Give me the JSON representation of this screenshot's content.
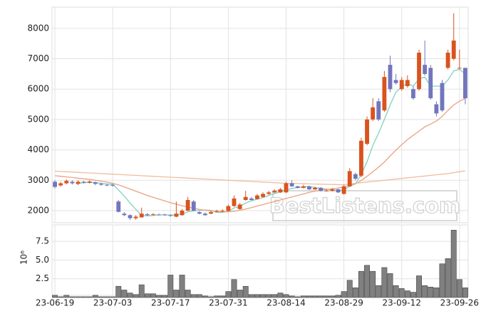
{
  "chart_data": [
    {
      "type": "candlestick",
      "watermark": "BestListens.com",
      "categories": [
        "23-06-19",
        null,
        null,
        null,
        null,
        null,
        null,
        null,
        null,
        null,
        "23-07-03",
        null,
        null,
        null,
        null,
        null,
        null,
        null,
        null,
        null,
        "23-07-17",
        null,
        null,
        null,
        null,
        null,
        null,
        null,
        null,
        null,
        "23-07-31",
        null,
        null,
        null,
        null,
        null,
        null,
        null,
        null,
        null,
        "23-08-14",
        null,
        null,
        null,
        null,
        null,
        null,
        null,
        null,
        null,
        "23-08-29",
        null,
        null,
        null,
        null,
        null,
        null,
        null,
        null,
        null,
        "23-09-12",
        null,
        null,
        null,
        null,
        null,
        null,
        null,
        null,
        null,
        "23-09-26",
        null
      ],
      "open": [
        2950,
        2830,
        2900,
        2950,
        2880,
        2950,
        2920,
        2930,
        2880,
        2850,
        2850,
        2300,
        1900,
        1850,
        1750,
        1780,
        1880,
        1860,
        1870,
        1870,
        1850,
        1800,
        1850,
        2000,
        2300,
        1950,
        1900,
        1900,
        1980,
        1980,
        1990,
        2150,
        2050,
        2350,
        2400,
        2380,
        2450,
        2550,
        2600,
        2600,
        2600,
        2900,
        2800,
        2750,
        2800,
        2700,
        2750,
        2650,
        2650,
        2700,
        2550,
        2800,
        3200,
        3150,
        4200,
        5000,
        5600,
        5300,
        6800,
        6300,
        6000,
        6100,
        6000,
        6000,
        6800,
        6700,
        5500,
        6200,
        6700,
        7000,
        6700,
        6700
      ],
      "high": [
        3000,
        2950,
        3030,
        3000,
        3000,
        2980,
        3000,
        2960,
        2920,
        2880,
        2870,
        2350,
        1950,
        1880,
        1850,
        2100,
        1920,
        1920,
        1900,
        1900,
        1880,
        2300,
        2050,
        2450,
        2350,
        1980,
        1940,
        2000,
        2030,
        2040,
        2200,
        2500,
        2250,
        2650,
        2450,
        2550,
        2600,
        2650,
        2700,
        2750,
        2950,
        3000,
        2820,
        2850,
        2820,
        2790,
        2780,
        2700,
        2740,
        2720,
        2850,
        3400,
        3250,
        4400,
        5100,
        5700,
        5700,
        6600,
        7100,
        6500,
        6400,
        6450,
        6100,
        7300,
        7600,
        6800,
        5600,
        6300,
        7300,
        8500,
        7300,
        6700
      ],
      "low": [
        2730,
        2790,
        2860,
        2860,
        2840,
        2890,
        2890,
        2840,
        2820,
        2800,
        2790,
        1940,
        1820,
        1700,
        1700,
        1760,
        1820,
        1840,
        1840,
        1830,
        1800,
        1780,
        1830,
        1980,
        1980,
        1880,
        1830,
        1880,
        1950,
        1960,
        1970,
        2130,
        2030,
        2330,
        2330,
        2360,
        2430,
        2520,
        2580,
        2580,
        2580,
        2780,
        2730,
        2730,
        2680,
        2680,
        2630,
        2630,
        2630,
        2580,
        2530,
        2780,
        3000,
        3100,
        4150,
        4950,
        4950,
        5250,
        5900,
        6150,
        5950,
        6050,
        5650,
        5950,
        6450,
        5650,
        5100,
        5250,
        6650,
        6950,
        6650,
        5500
      ],
      "close": [
        2780,
        2900,
        2980,
        2900,
        2950,
        2920,
        2960,
        2880,
        2850,
        2830,
        2820,
        1960,
        1850,
        1750,
        1800,
        1900,
        1850,
        1880,
        1860,
        1850,
        1830,
        1900,
        2000,
        2350,
        2000,
        1900,
        1850,
        1950,
        1990,
        2000,
        2150,
        2400,
        2200,
        2450,
        2350,
        2500,
        2550,
        2600,
        2650,
        2700,
        2900,
        2800,
        2750,
        2800,
        2700,
        2750,
        2650,
        2660,
        2700,
        2600,
        2800,
        3300,
        3050,
        4300,
        5000,
        5400,
        5000,
        6400,
        6000,
        6200,
        6300,
        6300,
        5700,
        7200,
        6500,
        5700,
        5200,
        5300,
        7200,
        7600,
        6700,
        5700
      ],
      "up_color": "#d9531e",
      "down_color": "#7176bd",
      "lines": [
        {
          "color": "#7fd1c0",
          "values": [
            null,
            null,
            null,
            null,
            2900,
            2920,
            2930,
            2920,
            2900,
            2880,
            2870,
            2680,
            2480,
            2250,
            2040,
            1840,
            1830,
            1840,
            1860,
            1860,
            1850,
            1860,
            1880,
            1960,
            1990,
            2010,
            2020,
            2010,
            1940,
            1940,
            1980,
            2090,
            2140,
            2250,
            2320,
            2380,
            2430,
            2500,
            2560,
            2620,
            2680,
            2730,
            2760,
            2780,
            2790,
            2760,
            2730,
            2710,
            2690,
            2660,
            2680,
            2800,
            2880,
            3190,
            3610,
            4150,
            4550,
            5000,
            5480,
            5900,
            6070,
            6200,
            6100,
            6340,
            6400,
            6100,
            6100,
            6100,
            6300,
            6600,
            6650,
            6500
          ]
        },
        {
          "color": "#e9a283",
          "values": [
            3150,
            3130,
            3110,
            3090,
            3070,
            3050,
            3030,
            3000,
            2970,
            2940,
            2900,
            2850,
            2780,
            2710,
            2640,
            2570,
            2500,
            2440,
            2380,
            2320,
            2260,
            2210,
            2160,
            2120,
            2080,
            2040,
            2010,
            1990,
            1970,
            1960,
            1960,
            1980,
            2010,
            2050,
            2100,
            2150,
            2200,
            2250,
            2300,
            2350,
            2400,
            2450,
            2500,
            2550,
            2600,
            2640,
            2680,
            2700,
            2720,
            2740,
            2780,
            2830,
            2880,
            2990,
            3130,
            3280,
            3430,
            3600,
            3800,
            3990,
            4170,
            4340,
            4480,
            4620,
            4760,
            4850,
            4950,
            5100,
            5300,
            5480,
            5600,
            5700
          ]
        },
        {
          "color": "#f0bc9e",
          "values": [
            3300,
            3290,
            3280,
            3270,
            3260,
            3250,
            3240,
            3230,
            3220,
            3210,
            3200,
            3190,
            3180,
            3170,
            3160,
            3150,
            3140,
            3130,
            3120,
            3110,
            3100,
            3090,
            3080,
            3070,
            3060,
            3050,
            3040,
            3030,
            3020,
            3010,
            3000,
            2990,
            2980,
            2970,
            2960,
            2950,
            2940,
            2930,
            2920,
            2910,
            2900,
            2895,
            2890,
            2885,
            2880,
            2875,
            2870,
            2865,
            2860,
            2855,
            2850,
            2880,
            2900,
            2920,
            2940,
            2960,
            2980,
            3000,
            3020,
            3040,
            3060,
            3080,
            3100,
            3120,
            3140,
            3160,
            3180,
            3200,
            3220,
            3250,
            3280,
            3310
          ]
        }
      ],
      "ylim": [
        1600,
        8700
      ],
      "yticks": [
        2000,
        3000,
        4000,
        5000,
        6000,
        7000,
        8000
      ],
      "grid": true
    },
    {
      "type": "bar",
      "ylabel": "10⁶",
      "color": "#808080",
      "values": [
        0.3,
        0.1,
        0.3,
        0.1,
        0.1,
        0.1,
        0.1,
        0.3,
        0.1,
        0.1,
        0.1,
        1.5,
        1.0,
        0.6,
        0.4,
        1.7,
        0.5,
        0.5,
        0.3,
        0.3,
        3.0,
        1.0,
        3.0,
        1.0,
        0.4,
        0.4,
        0.2,
        0.1,
        0.2,
        0.2,
        0.8,
        2.4,
        1.0,
        1.5,
        0.4,
        0.4,
        0.4,
        0.4,
        0.4,
        0.6,
        0.4,
        0.2,
        0.1,
        0.2,
        0.2,
        0.2,
        0.2,
        0.2,
        0.2,
        0.3,
        0.8,
        2.3,
        1.3,
        3.5,
        4.3,
        3.5,
        1.6,
        4.0,
        3.2,
        1.6,
        1.2,
        0.9,
        0.7,
        2.9,
        1.6,
        1.4,
        1.3,
        4.5,
        5.2,
        9.0,
        2.4,
        1.3
      ],
      "ylim": [
        0,
        9.7
      ],
      "yticks": [
        2.5,
        {
          "value": 5,
          "label": "5.0"
        },
        7.5
      ],
      "grid": true
    }
  ]
}
